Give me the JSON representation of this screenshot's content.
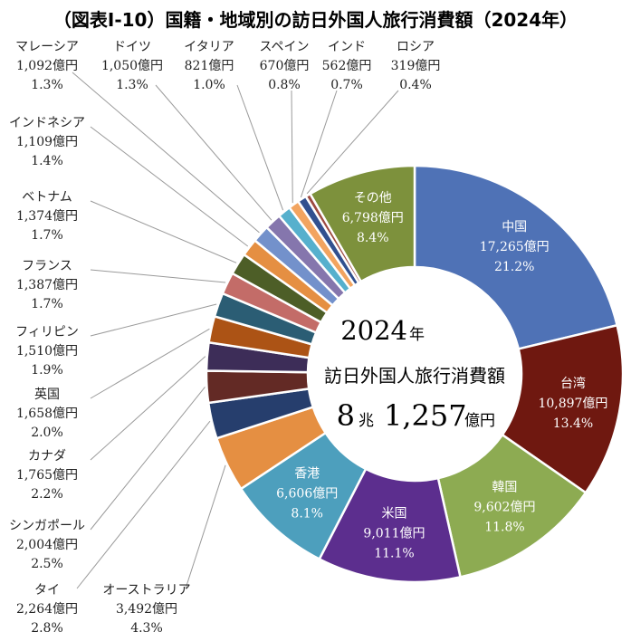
{
  "chart_data": {
    "type": "pie",
    "style": "donut",
    "title": "（図表Ⅰ-10）国籍・地域別の訪日外国人旅行消費額（2024年）",
    "center": {
      "year_value": "2024",
      "year_unit": "年",
      "label": "訪日外国人旅行消費額",
      "total_cho": "8",
      "cho_unit": "兆",
      "total_oku": "1,257",
      "oku_unit": "億円"
    },
    "units": "億円",
    "slices": [
      {
        "name": "中国",
        "value": 17265,
        "value_text": "17,265億円",
        "pct": "21.2%",
        "color": "#4f72b6"
      },
      {
        "name": "台湾",
        "value": 10897,
        "value_text": "10,897億円",
        "pct": "13.4%",
        "color": "#6f1810"
      },
      {
        "name": "韓国",
        "value": 9602,
        "value_text": "9,602億円",
        "pct": "11.8%",
        "color": "#8dab52"
      },
      {
        "name": "米国",
        "value": 9011,
        "value_text": "9,011億円",
        "pct": "11.1%",
        "color": "#5c2e8e"
      },
      {
        "name": "香港",
        "value": 6606,
        "value_text": "6,606億円",
        "pct": "8.1%",
        "color": "#4d9fbd"
      },
      {
        "name": "オーストラリア",
        "value": 3492,
        "value_text": "3,492億円",
        "pct": "4.3%",
        "color": "#e58f42"
      },
      {
        "name": "タイ",
        "value": 2264,
        "value_text": "2,264億円",
        "pct": "2.8%",
        "color": "#263e6d"
      },
      {
        "name": "シンガポール",
        "value": 2004,
        "value_text": "2,004億円",
        "pct": "2.5%",
        "color": "#632a25"
      },
      {
        "name": "カナダ",
        "value": 1765,
        "value_text": "1,765億円",
        "pct": "2.2%",
        "color": "#3d2d58"
      },
      {
        "name": "英国",
        "value": 1658,
        "value_text": "1,658億円",
        "pct": "2.0%",
        "color": "#ac5315"
      },
      {
        "name": "フィリピン",
        "value": 1510,
        "value_text": "1,510億円",
        "pct": "1.9%",
        "color": "#2b5d74"
      },
      {
        "name": "フランス",
        "value": 1387,
        "value_text": "1,387億円",
        "pct": "1.7%",
        "color": "#c36c68"
      },
      {
        "name": "ベトナム",
        "value": 1374,
        "value_text": "1,374億円",
        "pct": "1.7%",
        "color": "#4d5e27"
      },
      {
        "name": "インドネシア",
        "value": 1109,
        "value_text": "1,109億円",
        "pct": "1.4%",
        "color": "#e58f42"
      },
      {
        "name": "マレーシア",
        "value": 1092,
        "value_text": "1,092億円",
        "pct": "1.3%",
        "color": "#7391cb"
      },
      {
        "name": "ドイツ",
        "value": 1050,
        "value_text": "1,050億円",
        "pct": "1.3%",
        "color": "#8576ad"
      },
      {
        "name": "イタリア",
        "value": 821,
        "value_text": "821億円",
        "pct": "1.0%",
        "color": "#56b0cd"
      },
      {
        "name": "スペイン",
        "value": 670,
        "value_text": "670億円",
        "pct": "0.8%",
        "color": "#f2a460"
      },
      {
        "name": "インド",
        "value": 562,
        "value_text": "562億円",
        "pct": "0.7%",
        "color": "#31508f"
      },
      {
        "name": "ロシア",
        "value": 319,
        "value_text": "319億円",
        "pct": "0.4%",
        "color": "#9d4a40"
      },
      {
        "name": "その他",
        "value": 6798,
        "value_text": "6,798億円",
        "pct": "8.4%",
        "color": "#7d913c"
      }
    ]
  }
}
